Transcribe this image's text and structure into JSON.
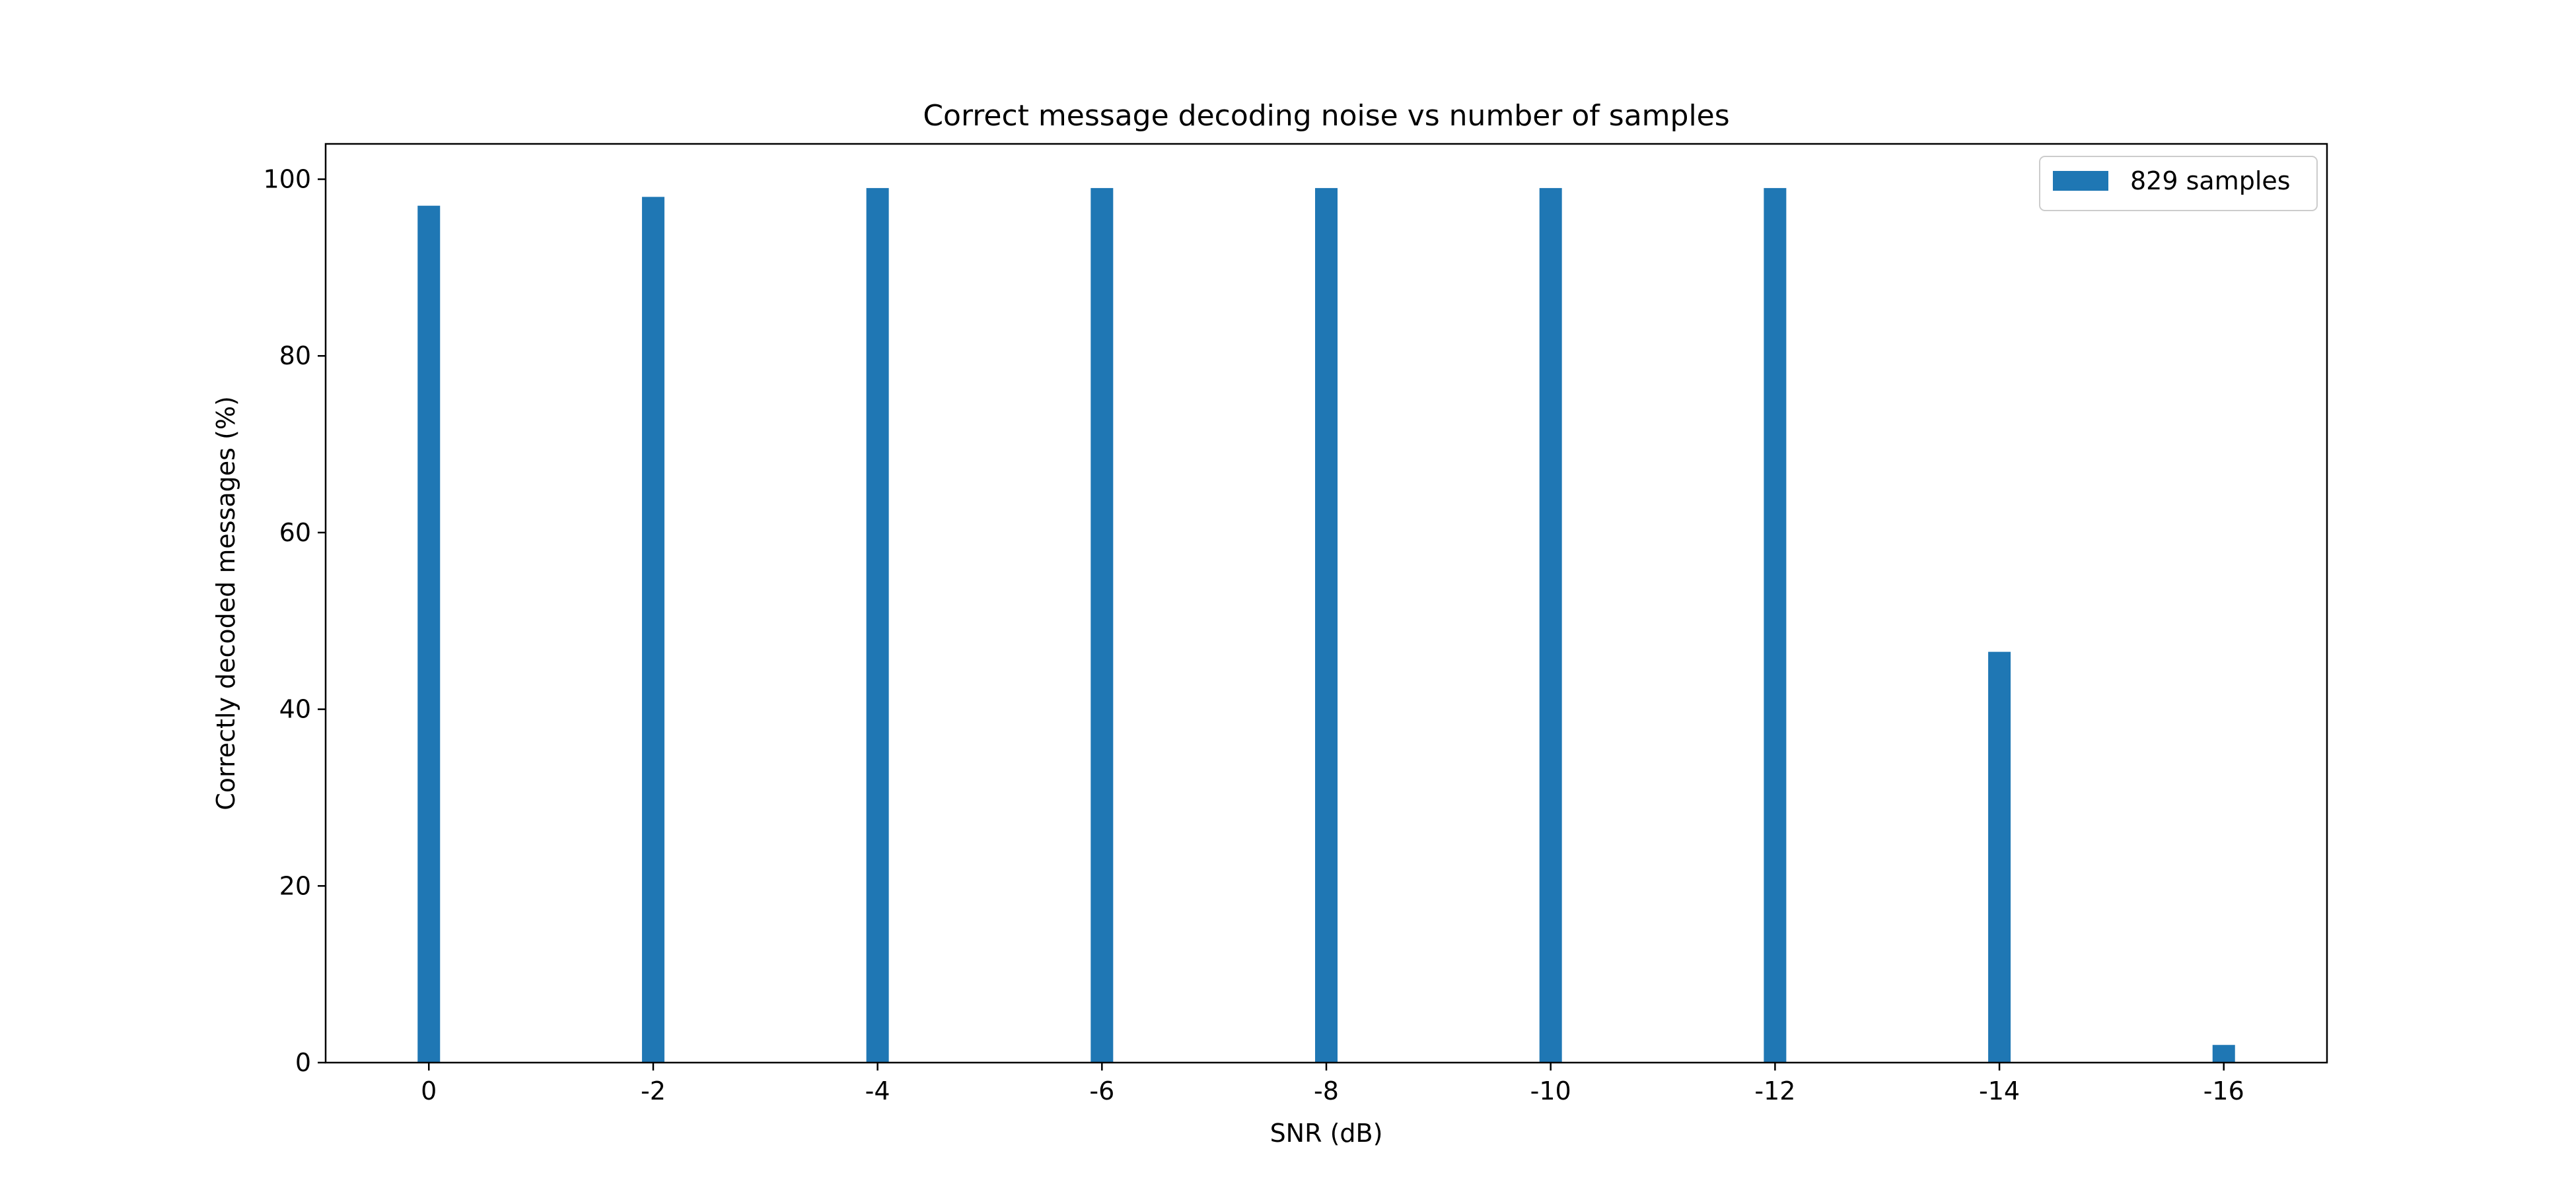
{
  "chart_data": {
    "type": "bar",
    "title": "Correct message decoding noise vs number of samples",
    "xlabel": "SNR (dB)",
    "ylabel": "Correctly decoded messages (%)",
    "categories": [
      "0",
      "-2",
      "-4",
      "-6",
      "-8",
      "-10",
      "-12",
      "-14",
      "-16"
    ],
    "series": [
      {
        "name": "829 samples",
        "color": "#1f77b4",
        "values": [
          97,
          98,
          99,
          99,
          99,
          99,
          99,
          46.5,
          2
        ]
      }
    ],
    "ylim": [
      0,
      104
    ],
    "yticks": [
      0,
      20,
      40,
      60,
      80,
      100
    ],
    "grid": false,
    "legend_position": "top-right"
  }
}
